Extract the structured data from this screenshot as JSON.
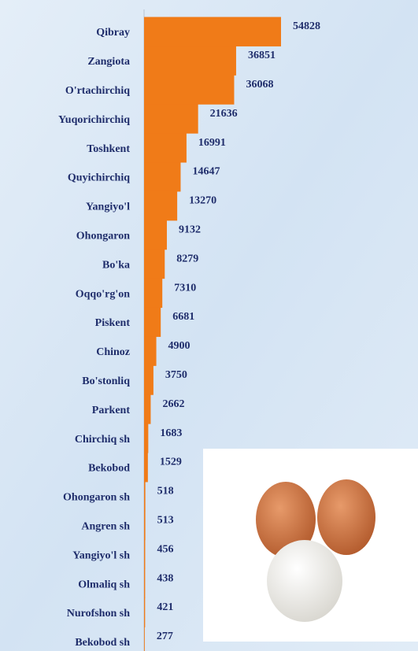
{
  "chart_data": {
    "type": "bar",
    "orientation": "horizontal",
    "color": "#f07b18",
    "categories": [
      "Qibray",
      "Zangiota",
      "O'rtachirchiq",
      "Yuqorichirchiq",
      "Toshkent",
      "Quyichirchiq",
      "Yangiyo'l",
      "Ohongaron",
      "Bo'ka",
      "Oqqo'rg'on",
      "Piskent",
      "Chinoz",
      "Bo'stonliq",
      "Parkent",
      "Chirchiq sh",
      "Bekobod",
      "Ohongaron sh",
      "Angren sh",
      "Yangiyo'l sh",
      "Olmaliq sh",
      "Nurofshon sh",
      "Bekobod sh"
    ],
    "values": [
      54828,
      36851,
      36068,
      21636,
      16991,
      14647,
      13270,
      9132,
      8279,
      7310,
      6681,
      4900,
      3750,
      2662,
      1683,
      1529,
      518,
      513,
      456,
      438,
      421,
      277
    ]
  }
}
